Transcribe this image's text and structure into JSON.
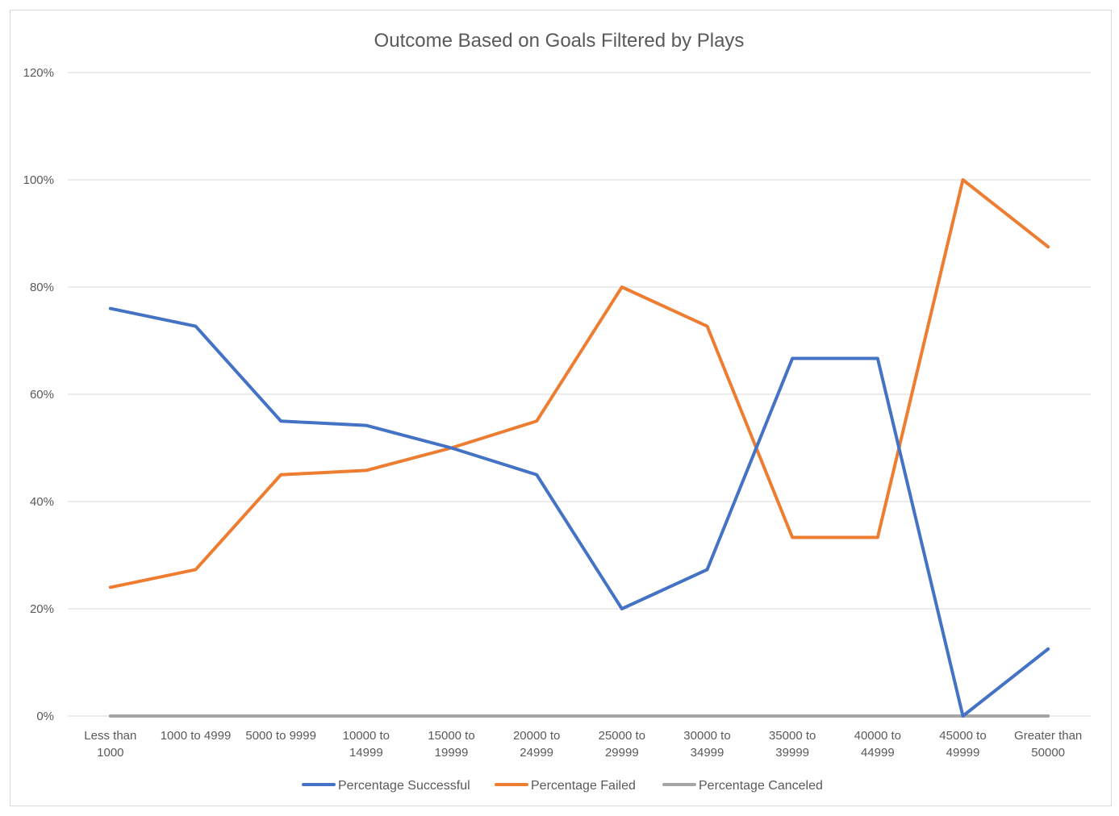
{
  "chart_data": {
    "type": "line",
    "title": "Outcome Based on Goals Filtered by Plays",
    "xlabel": "",
    "ylabel": "",
    "categories": [
      [
        "Less than",
        "1000"
      ],
      [
        "1000 to 4999"
      ],
      [
        "5000 to 9999"
      ],
      [
        "10000 to",
        "14999"
      ],
      [
        "15000 to",
        "19999"
      ],
      [
        "20000 to",
        "24999"
      ],
      [
        "25000 to",
        "29999"
      ],
      [
        "30000 to",
        "34999"
      ],
      [
        "35000 to",
        "39999"
      ],
      [
        "40000 to",
        "44999"
      ],
      [
        "45000 to",
        "49999"
      ],
      [
        "Greater than",
        "50000"
      ]
    ],
    "ylim": [
      0,
      1.2
    ],
    "yticks": [
      0,
      0.2,
      0.4,
      0.6,
      0.8,
      1.0,
      1.2
    ],
    "ytick_labels": [
      "0%",
      "20%",
      "40%",
      "60%",
      "80%",
      "100%",
      "120%"
    ],
    "grid": true,
    "legend_position": "bottom",
    "series": [
      {
        "name": "Percentage Successful",
        "color": "#4472c4",
        "values": [
          0.76,
          0.727,
          0.55,
          0.542,
          0.5,
          0.45,
          0.2,
          0.273,
          0.667,
          0.667,
          0.0,
          0.125
        ]
      },
      {
        "name": "Percentage Failed",
        "color": "#ed7d31",
        "values": [
          0.24,
          0.273,
          0.45,
          0.458,
          0.5,
          0.55,
          0.8,
          0.727,
          0.333,
          0.333,
          1.0,
          0.875
        ]
      },
      {
        "name": "Percentage Canceled",
        "color": "#a5a5a5",
        "values": [
          0,
          0,
          0,
          0,
          0,
          0,
          0,
          0,
          0,
          0,
          0,
          0
        ]
      }
    ]
  }
}
